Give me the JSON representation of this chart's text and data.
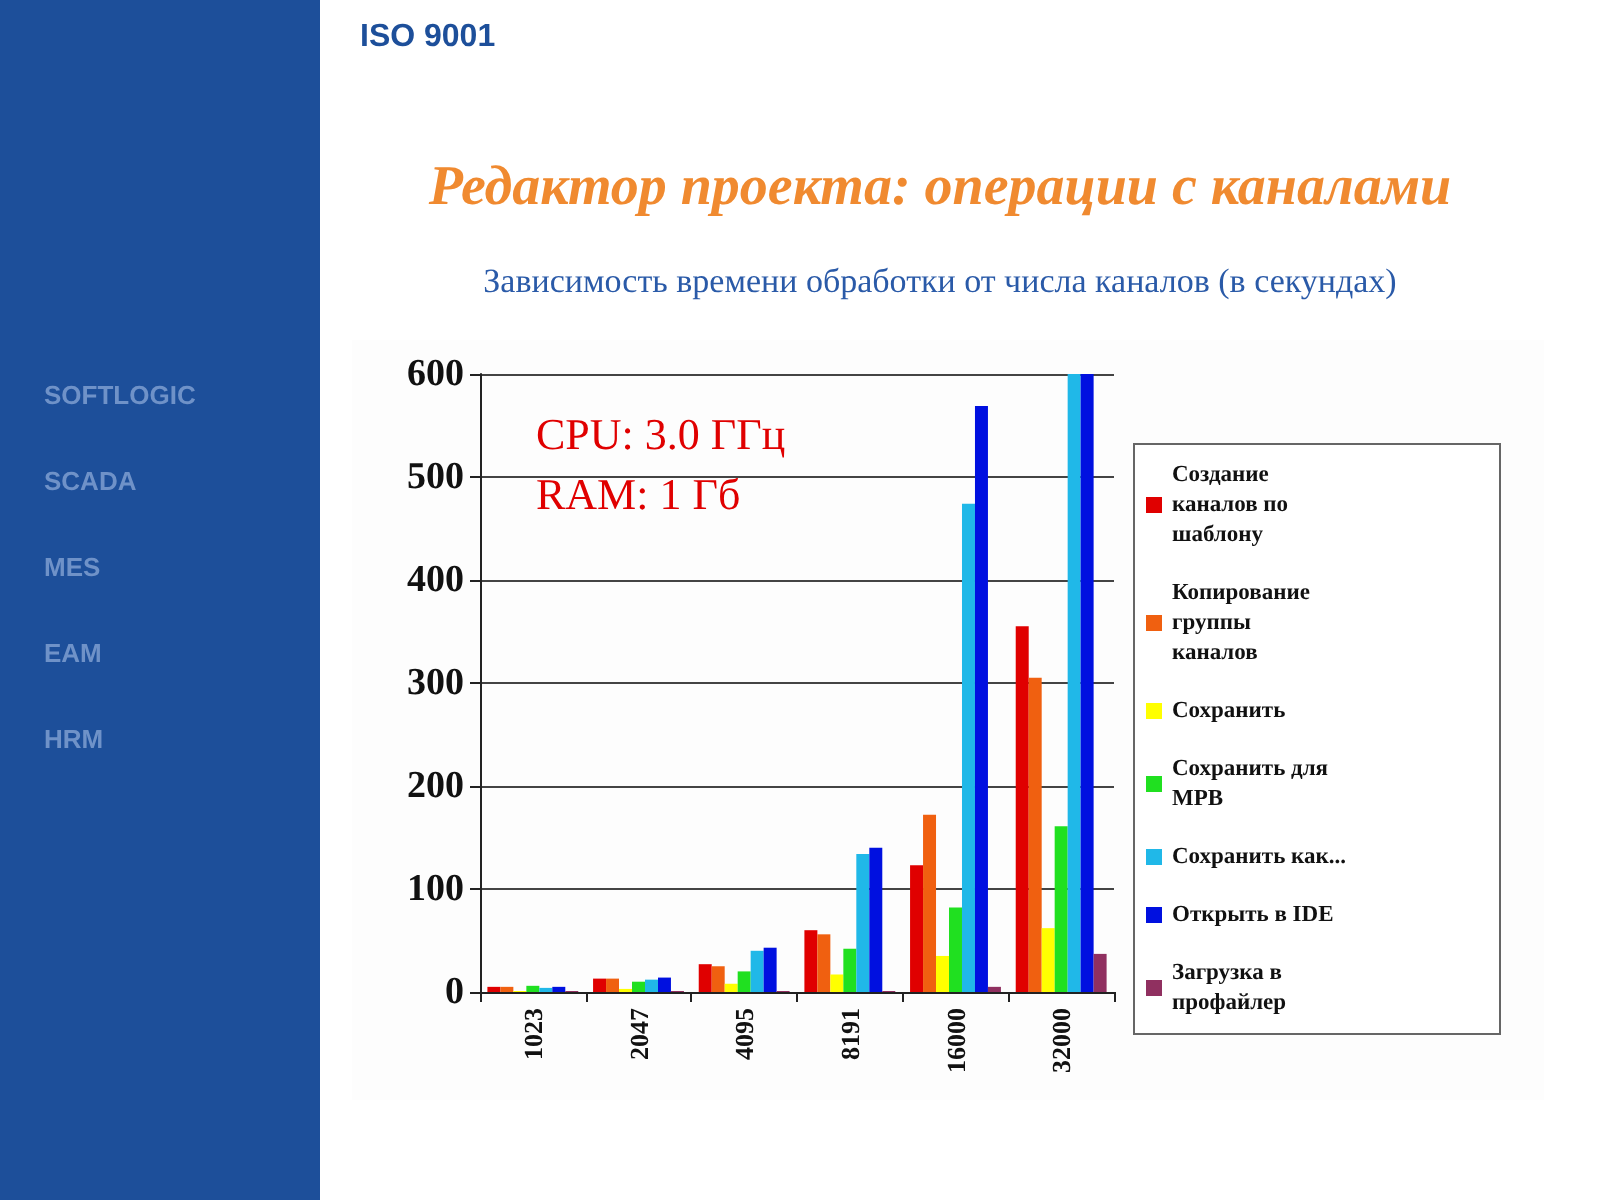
{
  "chart_data": {
    "type": "bar",
    "title": "Редактор проекта: операции с каналами",
    "subtitle": "Зависимость времени обработки от числа каналов (в секундах)",
    "categories": [
      "1023",
      "2047",
      "4095",
      "8191",
      "16000",
      "32000"
    ],
    "series": [
      {
        "name": "Создание каналов по шаблону",
        "color": "#e00000",
        "values": [
          5,
          13,
          27,
          60,
          123,
          355
        ]
      },
      {
        "name": "Копирование группы каналов",
        "color": "#f06010",
        "values": [
          5,
          13,
          25,
          56,
          172,
          305
        ]
      },
      {
        "name": "Сохранить",
        "color": "#ffff00",
        "values": [
          1,
          3,
          8,
          17,
          35,
          62
        ]
      },
      {
        "name": "Сохранить для МРВ",
        "color": "#20e020",
        "values": [
          6,
          10,
          20,
          42,
          82,
          161
        ]
      },
      {
        "name": "Сохранить как...",
        "color": "#20b8e8",
        "values": [
          4,
          12,
          40,
          134,
          474,
          600
        ]
      },
      {
        "name": "Открыть в IDE",
        "color": "#0010e0",
        "values": [
          5,
          14,
          43,
          140,
          569,
          600
        ]
      },
      {
        "name": "Загрузка в профайлер",
        "color": "#903060",
        "values": [
          1,
          1,
          1,
          1,
          5,
          37
        ]
      }
    ],
    "ylim": [
      0,
      600
    ],
    "yticks": [
      0,
      100,
      200,
      300,
      400,
      500,
      600
    ],
    "grid": "y",
    "legend": "right",
    "annotations": [
      "CPU: 3.0 ГГц\nRAM: 1 Гб",
      "ISO 9001",
      "SOFTLOGIC",
      "SCADA",
      "MES",
      "EAM",
      "HRM"
    ]
  }
}
